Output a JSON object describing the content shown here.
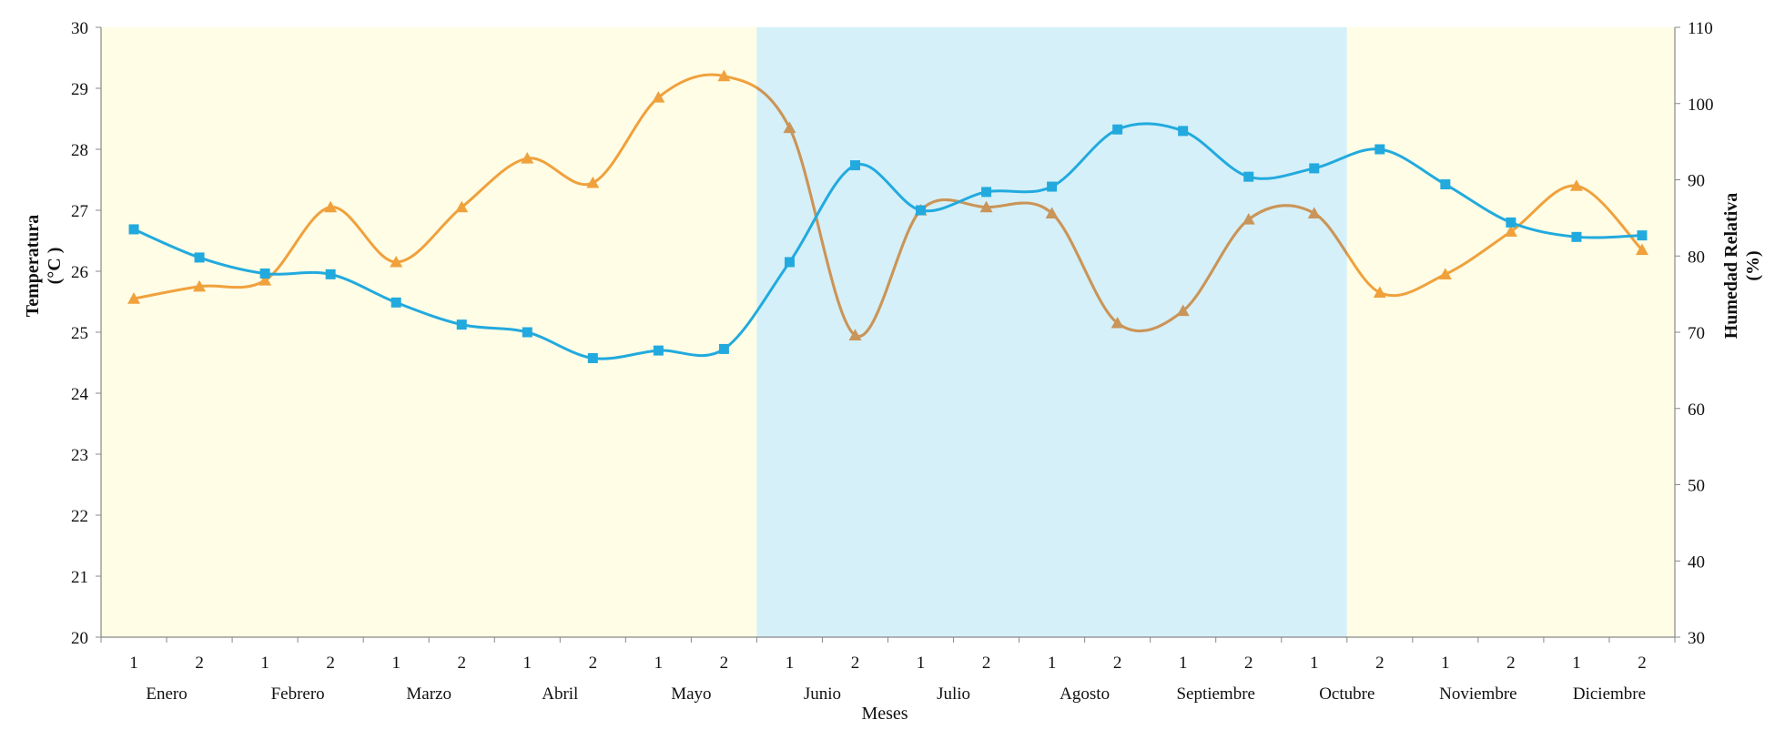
{
  "chart_data": {
    "type": "line",
    "xlabel": "Meses",
    "ylabel_left": [
      "Temperatura",
      "(°C )"
    ],
    "ylabel_right": [
      "Humedad Relativa",
      "(%)"
    ],
    "ylim_left": [
      20,
      30
    ],
    "ylim_right": [
      30,
      110
    ],
    "yticks_left": [
      20,
      21,
      22,
      23,
      24,
      25,
      26,
      27,
      28,
      29,
      30
    ],
    "yticks_right": [
      30,
      40,
      50,
      60,
      70,
      80,
      90,
      100,
      110
    ],
    "x_ticks": [
      "1",
      "2",
      "1",
      "2",
      "1",
      "2",
      "1",
      "2",
      "1",
      "2",
      "1",
      "2",
      "1",
      "2",
      "1",
      "2",
      "1",
      "2",
      "1",
      "2",
      "1",
      "2",
      "1",
      "2"
    ],
    "months": [
      "Enero",
      "Febrero",
      "Marzo",
      "Abril",
      "Mayo",
      "Junio",
      "Julio",
      "Agosto",
      "Septiembre",
      "Octubre",
      "Noviembre",
      "Diciembre"
    ],
    "grid": false,
    "background_bands": [
      {
        "from_index": 0,
        "to_index": 10,
        "color": "#fffde6"
      },
      {
        "from_index": 10,
        "to_index": 19,
        "color": "#d5f0f9"
      },
      {
        "from_index": 19,
        "to_index": 24,
        "color": "#fffde6"
      }
    ],
    "series": [
      {
        "axis": "left",
        "marker": "triangle",
        "color": "#f0a13c",
        "color_wet": "#c9955a",
        "values": [
          25.55,
          25.75,
          25.85,
          27.05,
          26.15,
          27.05,
          27.85,
          27.45,
          28.85,
          29.2,
          28.35,
          24.95,
          27.0,
          27.05,
          26.95,
          25.15,
          25.35,
          26.85,
          26.95,
          25.65,
          25.95,
          26.65,
          27.4,
          26.35
        ]
      },
      {
        "axis": "right",
        "marker": "square",
        "color": "#22aade",
        "values": [
          83.5,
          79.8,
          77.7,
          77.6,
          73.9,
          71.0,
          70.0,
          66.6,
          67.6,
          67.8,
          79.2,
          91.9,
          86.0,
          88.4,
          89.1,
          96.6,
          96.4,
          90.4,
          91.5,
          94.0,
          89.4,
          84.4,
          82.5,
          82.7
        ]
      }
    ]
  }
}
